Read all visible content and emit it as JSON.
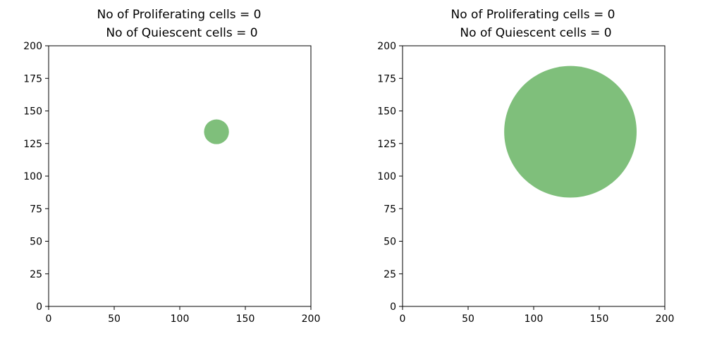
{
  "chart_data": [
    {
      "type": "scatter",
      "title_lines": [
        "No of Proliferating cells = 0",
        "No of Quiescent cells = 0"
      ],
      "xlim": [
        0,
        200
      ],
      "ylim": [
        0,
        200
      ],
      "xticks": [
        "0",
        "50",
        "100",
        "150",
        "200"
      ],
      "yticks": [
        "0",
        "25",
        "50",
        "75",
        "100",
        "125",
        "150",
        "175",
        "200"
      ],
      "grid": false,
      "circles": [
        {
          "x": 128,
          "y": 134,
          "radius": 9.5,
          "color": "#7fbf7b"
        }
      ]
    },
    {
      "type": "scatter",
      "title_lines": [
        "No of Proliferating cells = 0",
        "No of Quiescent cells = 0"
      ],
      "xlim": [
        0,
        200
      ],
      "ylim": [
        0,
        200
      ],
      "xticks": [
        "0",
        "50",
        "100",
        "150",
        "200"
      ],
      "yticks": [
        "0",
        "25",
        "50",
        "75",
        "100",
        "125",
        "150",
        "175",
        "200"
      ],
      "grid": false,
      "circles": [
        {
          "x": 128,
          "y": 134,
          "radius": 50.5,
          "color": "#7fbf7b"
        }
      ]
    }
  ]
}
